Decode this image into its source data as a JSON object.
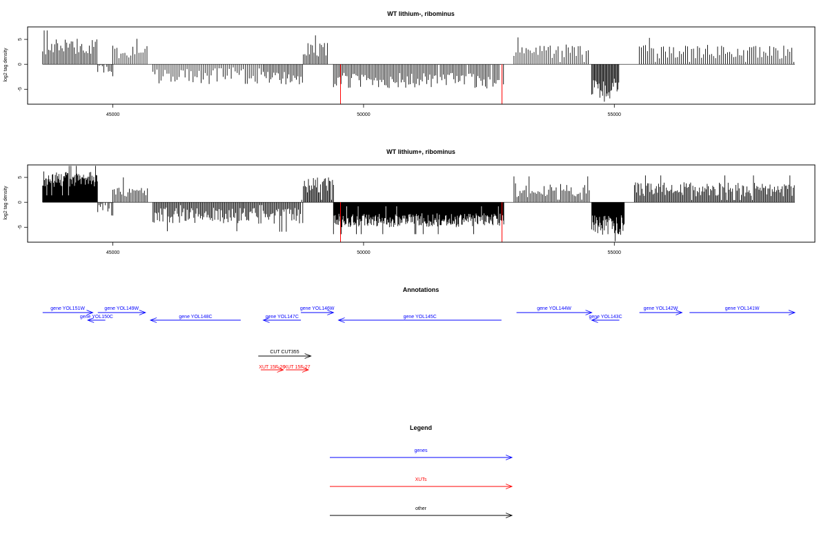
{
  "colors": {
    "gene": "#0000ff",
    "xut": "#ff0000",
    "other": "#000000",
    "highlight": "#ff0000",
    "bars": "#000000"
  },
  "chart_data": [
    {
      "type": "bar",
      "title": "WT lithium-, ribominus",
      "ylabel": "log2 tag density",
      "xlim": [
        43300,
        59000
      ],
      "ylim": [
        -8,
        7.5
      ],
      "x_ticks": [
        45000,
        50000,
        55000
      ],
      "x_tick_labels": [
        "45000",
        "50000",
        "55000"
      ],
      "y_ticks": [
        -5,
        0,
        5
      ],
      "y_tick_labels": [
        "-5",
        "0",
        "5"
      ],
      "baseline_from": 43600,
      "baseline_to": 58600,
      "highlight_lines": [
        {
          "x": 49540,
          "y": -8
        },
        {
          "x": 52760,
          "y": -8
        }
      ],
      "segments": [
        {
          "start": 43600,
          "end": 44700,
          "mean": 3.6,
          "amp": 1.6,
          "step": 30
        },
        {
          "start": 44700,
          "end": 45000,
          "mean": -1.0,
          "amp": 1.4,
          "step": 30
        },
        {
          "start": 45000,
          "end": 45700,
          "mean": 2.5,
          "amp": 1.3,
          "step": 40
        },
        {
          "start": 45800,
          "end": 48000,
          "mean": -2.4,
          "amp": 1.6,
          "step": 40
        },
        {
          "start": 48000,
          "end": 48800,
          "mean": -2.6,
          "amp": 1.5,
          "step": 30
        },
        {
          "start": 48800,
          "end": 49300,
          "mean": 3.0,
          "amp": 1.4,
          "step": 30
        },
        {
          "start": 49400,
          "end": 52800,
          "mean": -3.3,
          "amp": 1.6,
          "step": 30
        },
        {
          "start": 53000,
          "end": 54500,
          "mean": 2.6,
          "amp": 1.4,
          "step": 40
        },
        {
          "start": 54550,
          "end": 55100,
          "mean": -5.2,
          "amp": 2.4,
          "step": 18
        },
        {
          "start": 55500,
          "end": 58600,
          "mean": 2.5,
          "amp": 1.4,
          "step": 40
        }
      ]
    },
    {
      "type": "bar",
      "title": "WT lithium+, ribominus",
      "ylabel": "log2 tag density",
      "xlim": [
        43300,
        59000
      ],
      "ylim": [
        -8,
        7.5
      ],
      "x_ticks": [
        45000,
        50000,
        55000
      ],
      "x_tick_labels": [
        "45000",
        "50000",
        "55000"
      ],
      "y_ticks": [
        -5,
        0,
        5
      ],
      "y_tick_labels": [
        "-5",
        "0",
        "5"
      ],
      "baseline_from": 43600,
      "baseline_to": 58600,
      "highlight_lines": [
        {
          "x": 49540,
          "y": -8
        },
        {
          "x": 52760,
          "y": -8
        }
      ],
      "segments": [
        {
          "start": 43600,
          "end": 44700,
          "mean": 4.6,
          "amp": 1.6,
          "step": 12
        },
        {
          "start": 44700,
          "end": 45000,
          "mean": -1.2,
          "amp": 1.5,
          "step": 25
        },
        {
          "start": 45000,
          "end": 45700,
          "mean": 2.4,
          "amp": 1.3,
          "step": 30
        },
        {
          "start": 45800,
          "end": 47600,
          "mean": -2.6,
          "amp": 1.6,
          "step": 22
        },
        {
          "start": 47600,
          "end": 48800,
          "mean": -2.7,
          "amp": 1.6,
          "step": 22
        },
        {
          "start": 48800,
          "end": 49400,
          "mean": 3.5,
          "amp": 1.5,
          "step": 20
        },
        {
          "start": 49400,
          "end": 52800,
          "mean": -3.6,
          "amp": 1.4,
          "step": 12
        },
        {
          "start": 53000,
          "end": 54500,
          "mean": 2.4,
          "amp": 1.4,
          "step": 30
        },
        {
          "start": 54550,
          "end": 55200,
          "mean": -4.6,
          "amp": 2.0,
          "step": 12
        },
        {
          "start": 55400,
          "end": 58600,
          "mean": 2.6,
          "amp": 1.4,
          "step": 22
        }
      ]
    }
  ],
  "annotations": {
    "title": "Annotations",
    "features": [
      {
        "label": "gene YOL151W",
        "start": 43600,
        "end": 44600,
        "strand": "+",
        "row": 0,
        "kind": "gene"
      },
      {
        "label": "gene YOL150C",
        "start": 44500,
        "end": 44850,
        "strand": "-",
        "row": 1,
        "kind": "gene"
      },
      {
        "label": "gene YOL149W",
        "start": 44700,
        "end": 45650,
        "strand": "+",
        "row": 0,
        "kind": "gene"
      },
      {
        "label": "gene YOL148C",
        "start": 45750,
        "end": 47550,
        "strand": "-",
        "row": 1,
        "kind": "gene"
      },
      {
        "label": "gene YOL147C",
        "start": 48000,
        "end": 48750,
        "strand": "-",
        "row": 1,
        "kind": "gene"
      },
      {
        "label": "gene YOL146W",
        "start": 48750,
        "end": 49400,
        "strand": "+",
        "row": 0,
        "kind": "gene"
      },
      {
        "label": "gene YOL145C",
        "start": 49500,
        "end": 52750,
        "strand": "-",
        "row": 1,
        "kind": "gene"
      },
      {
        "label": "gene YOL144W",
        "start": 53050,
        "end": 54550,
        "strand": "+",
        "row": 0,
        "kind": "gene"
      },
      {
        "label": "gene YOL143C",
        "start": 54550,
        "end": 55100,
        "strand": "-",
        "row": 1,
        "kind": "gene"
      },
      {
        "label": "gene YOL142W",
        "start": 55500,
        "end": 56350,
        "strand": "+",
        "row": 0,
        "kind": "gene"
      },
      {
        "label": "gene YOL141W",
        "start": 56500,
        "end": 58600,
        "strand": "+",
        "row": 0,
        "kind": "gene"
      },
      {
        "label": "CUT CUT355",
        "start": 47900,
        "end": 48950,
        "strand": "+",
        "row": 2,
        "kind": "other"
      },
      {
        "label": "XUT 15F-26",
        "start": 47950,
        "end": 48400,
        "strand": "+",
        "row": 3,
        "kind": "xut"
      },
      {
        "label": "XUT 15F-27",
        "start": 48450,
        "end": 48900,
        "strand": "+",
        "row": 3,
        "kind": "xut"
      }
    ]
  },
  "legend": {
    "title": "Legend",
    "items": [
      {
        "label": "genes",
        "kind": "gene"
      },
      {
        "label": "XUTs",
        "kind": "xut"
      },
      {
        "label": "other",
        "kind": "other"
      }
    ]
  }
}
